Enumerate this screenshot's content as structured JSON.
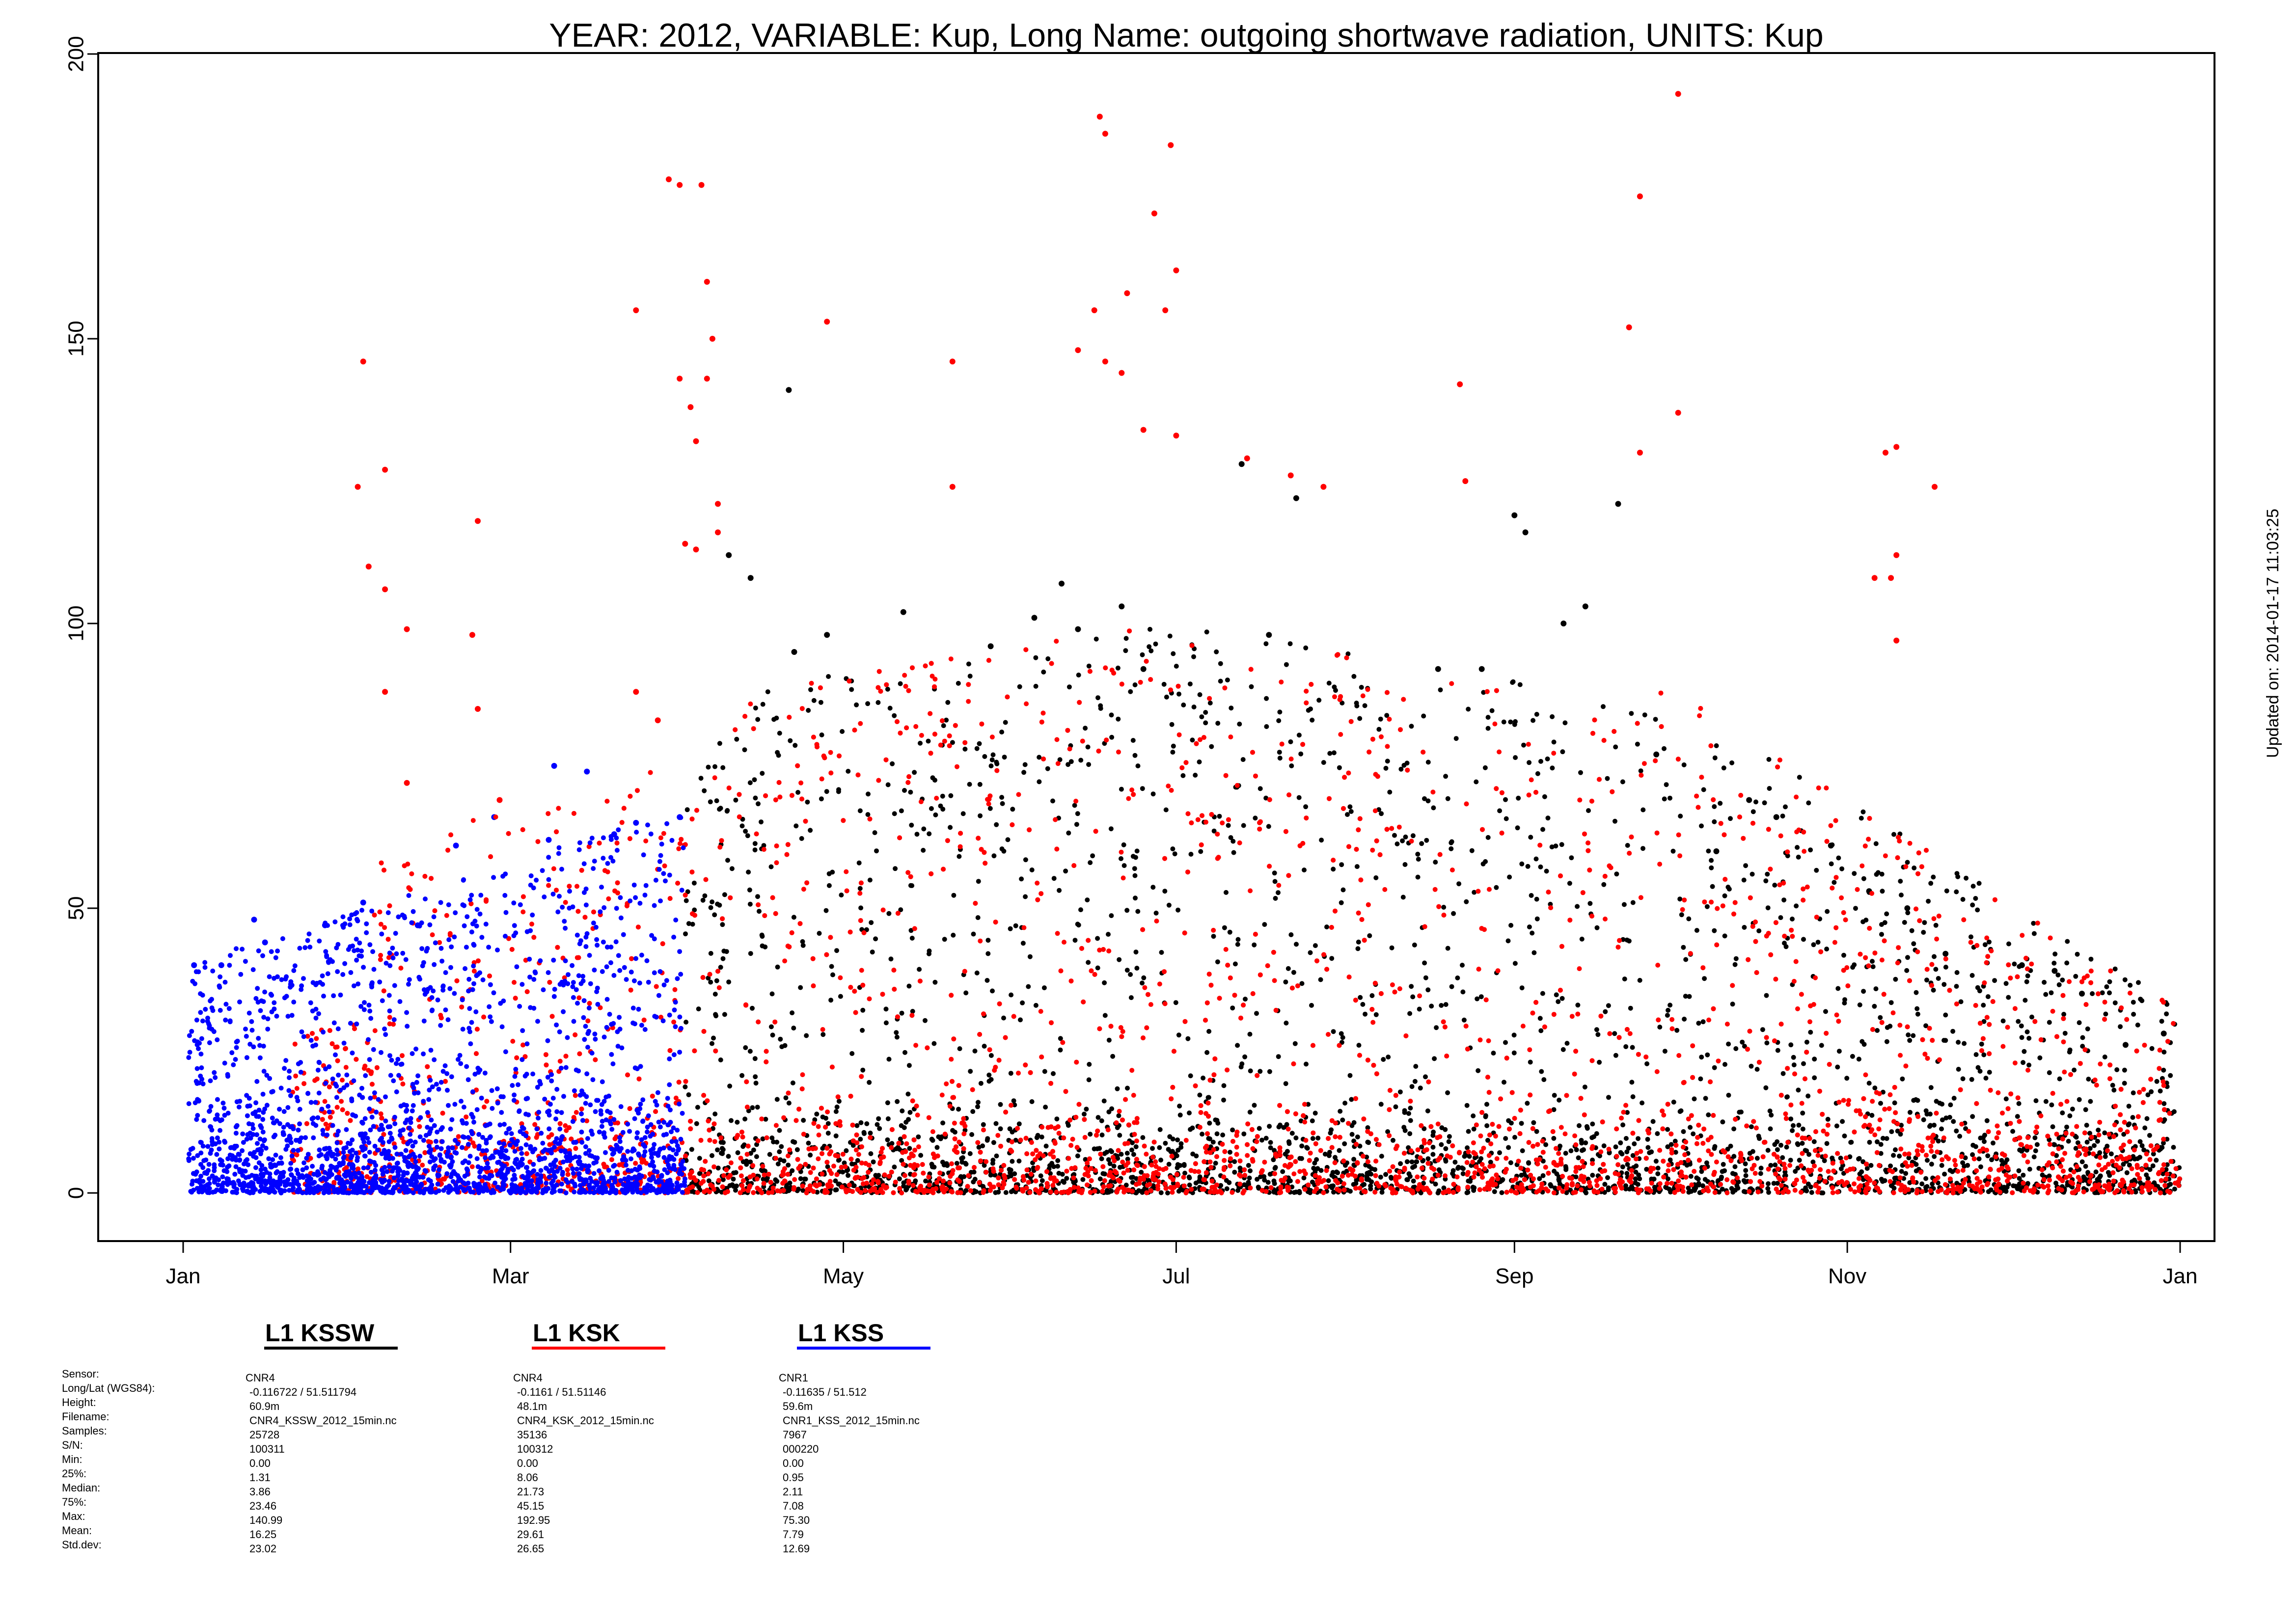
{
  "chart_data": {
    "type": "scatter",
    "title": "YEAR: 2012, VARIABLE: Kup, Long Name: outgoing  shortwave  radiation, UNITS: Kup",
    "xlabel": "",
    "ylabel": "",
    "updated_text": "Updated on: 2014-01-17 11:03:25",
    "xlim": [
      "2012-01-01",
      "2013-01-01"
    ],
    "ylim": [
      0,
      200
    ],
    "grid": false,
    "x_ticks": [
      {
        "date": "2012-01-01",
        "label": "Jan"
      },
      {
        "date": "2012-03-01",
        "label": "Mar"
      },
      {
        "date": "2012-05-01",
        "label": "May"
      },
      {
        "date": "2012-07-01",
        "label": "Jul"
      },
      {
        "date": "2012-09-01",
        "label": "Sep"
      },
      {
        "date": "2012-11-01",
        "label": "Nov"
      },
      {
        "date": "2013-01-01",
        "label": "Jan"
      }
    ],
    "y_ticks": [
      0,
      50,
      100,
      150,
      200
    ],
    "series": [
      {
        "name": "L1 KSSW",
        "color": "#000000",
        "points": [
          [
            "2012-04-10",
            112
          ],
          [
            "2012-04-14",
            108
          ],
          [
            "2012-04-21",
            141
          ],
          [
            "2012-04-22",
            95
          ],
          [
            "2012-04-28",
            98
          ],
          [
            "2012-05-12",
            102
          ],
          [
            "2012-05-28",
            96
          ],
          [
            "2012-06-05",
            101
          ],
          [
            "2012-06-10",
            107
          ],
          [
            "2012-06-13",
            99
          ],
          [
            "2012-06-21",
            103
          ],
          [
            "2012-06-25",
            92
          ],
          [
            "2012-07-13",
            128
          ],
          [
            "2012-07-18",
            98
          ],
          [
            "2012-07-23",
            122
          ],
          [
            "2012-08-18",
            92
          ],
          [
            "2012-08-26",
            92
          ],
          [
            "2012-09-01",
            119
          ],
          [
            "2012-09-03",
            116
          ],
          [
            "2012-09-10",
            100
          ],
          [
            "2012-09-14",
            103
          ],
          [
            "2012-09-20",
            121
          ],
          [
            "2012-09-27",
            77
          ],
          [
            "2012-10-08",
            60
          ],
          [
            "2012-10-14",
            69
          ],
          [
            "2012-10-19",
            66
          ],
          [
            "2012-10-29",
            61
          ],
          [
            "2012-11-05",
            53
          ],
          [
            "2012-11-12",
            50
          ],
          [
            "2012-11-19",
            42
          ],
          [
            "2012-12-03",
            40
          ],
          [
            "2012-12-09",
            39
          ],
          [
            "2012-12-14",
            35
          ],
          [
            "2012-12-22",
            26
          ],
          [
            "2012-12-29",
            28
          ]
        ]
      },
      {
        "name": "L1 KSK",
        "color": "#ff0000",
        "points": [
          [
            "2012-02-02",
            124
          ],
          [
            "2012-02-03",
            146
          ],
          [
            "2012-02-04",
            110
          ],
          [
            "2012-02-07",
            127
          ],
          [
            "2012-02-07",
            106
          ],
          [
            "2012-02-07",
            88
          ],
          [
            "2012-02-11",
            99
          ],
          [
            "2012-02-11",
            72
          ],
          [
            "2012-02-23",
            98
          ],
          [
            "2012-02-24",
            118
          ],
          [
            "2012-02-24",
            85
          ],
          [
            "2012-02-28",
            69
          ],
          [
            "2012-03-24",
            155
          ],
          [
            "2012-03-24",
            88
          ],
          [
            "2012-03-28",
            83
          ],
          [
            "2012-03-30",
            178
          ],
          [
            "2012-04-01",
            177
          ],
          [
            "2012-04-01",
            143
          ],
          [
            "2012-04-02",
            114
          ],
          [
            "2012-04-03",
            138
          ],
          [
            "2012-04-04",
            132
          ],
          [
            "2012-04-04",
            113
          ],
          [
            "2012-04-05",
            177
          ],
          [
            "2012-04-06",
            160
          ],
          [
            "2012-04-06",
            143
          ],
          [
            "2012-04-07",
            150
          ],
          [
            "2012-04-08",
            121
          ],
          [
            "2012-04-08",
            116
          ],
          [
            "2012-04-28",
            153
          ],
          [
            "2012-05-21",
            146
          ],
          [
            "2012-05-21",
            124
          ],
          [
            "2012-06-13",
            148
          ],
          [
            "2012-06-16",
            155
          ],
          [
            "2012-06-17",
            189
          ],
          [
            "2012-06-18",
            186
          ],
          [
            "2012-06-18",
            146
          ],
          [
            "2012-06-21",
            144
          ],
          [
            "2012-06-22",
            158
          ],
          [
            "2012-06-25",
            134
          ],
          [
            "2012-06-27",
            172
          ],
          [
            "2012-06-29",
            155
          ],
          [
            "2012-06-30",
            184
          ],
          [
            "2012-07-01",
            162
          ],
          [
            "2012-07-01",
            133
          ],
          [
            "2012-07-14",
            129
          ],
          [
            "2012-07-22",
            126
          ],
          [
            "2012-07-28",
            124
          ],
          [
            "2012-08-22",
            142
          ],
          [
            "2012-08-23",
            125
          ],
          [
            "2012-09-22",
            152
          ],
          [
            "2012-09-24",
            175
          ],
          [
            "2012-09-24",
            130
          ],
          [
            "2012-10-01",
            193
          ],
          [
            "2012-10-01",
            137
          ],
          [
            "2012-11-06",
            108
          ],
          [
            "2012-11-08",
            130
          ],
          [
            "2012-11-09",
            108
          ],
          [
            "2012-11-10",
            131
          ],
          [
            "2012-11-10",
            112
          ],
          [
            "2012-11-10",
            97
          ],
          [
            "2012-11-17",
            124
          ]
        ]
      },
      {
        "name": "L1 KSS",
        "color": "#0000ff",
        "points": [
          [
            "2012-01-03",
            40
          ],
          [
            "2012-01-08",
            40
          ],
          [
            "2012-01-14",
            48
          ],
          [
            "2012-01-16",
            44
          ],
          [
            "2012-01-27",
            47
          ],
          [
            "2012-02-03",
            51
          ],
          [
            "2012-02-13",
            47
          ],
          [
            "2012-02-20",
            61
          ],
          [
            "2012-02-27",
            66
          ],
          [
            "2012-03-08",
            62
          ],
          [
            "2012-03-09",
            75
          ],
          [
            "2012-03-15",
            74
          ],
          [
            "2012-03-20",
            63
          ],
          [
            "2012-03-24",
            65
          ],
          [
            "2012-04-01",
            66
          ]
        ]
      }
    ],
    "legend": {
      "placement": "bottom",
      "entries": [
        {
          "label": "L1 KSSW",
          "color": "#000000"
        },
        {
          "label": "L1 KSK",
          "color": "#ff0000"
        },
        {
          "label": "L1 KSS",
          "color": "#0000ff"
        }
      ]
    }
  },
  "metadata_table": {
    "row_labels": [
      "Sensor:",
      "Long/Lat (WGS84):",
      "Height:",
      "Filename:",
      "Samples:",
      "S/N:",
      "Min:",
      "25%:",
      "Median:",
      "75%:",
      "Max:",
      "Mean:",
      "Std.dev:"
    ],
    "columns": [
      {
        "series": "L1 KSSW",
        "values": [
          "CNR4",
          "-0.116722 / 51.511794",
          "60.9m",
          "CNR4_KSSW_2012_15min.nc",
          "25728",
          "100311",
          "0.00",
          "1.31",
          "3.86",
          "23.46",
          "140.99",
          "16.25",
          "23.02"
        ]
      },
      {
        "series": "L1 KSK",
        "values": [
          "CNR4",
          "-0.1161 / 51.51146",
          "48.1m",
          "CNR4_KSK_2012_15min.nc",
          "35136",
          "100312",
          "0.00",
          "8.06",
          "21.73",
          "45.15",
          "192.95",
          "29.61",
          "26.65"
        ]
      },
      {
        "series": "L1 KSS",
        "values": [
          "CNR1",
          "-0.11635 / 51.512",
          "59.6m",
          "CNR1_KSS_2012_15min.nc",
          "7967",
          "000220",
          "0.00",
          "0.95",
          "2.11",
          "7.08",
          "75.30",
          "7.79",
          "12.69"
        ]
      }
    ]
  }
}
